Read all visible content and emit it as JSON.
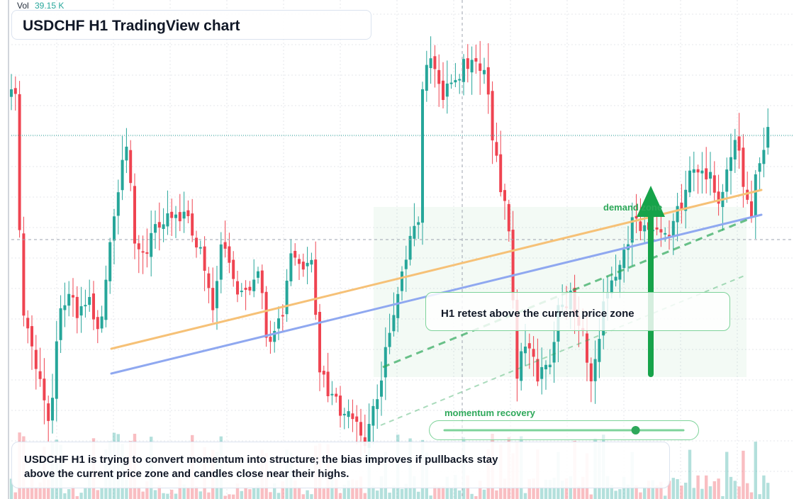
{
  "header": {
    "title": "USDCHF H1 TradingView chart"
  },
  "volume_indicator": {
    "label": "Vol",
    "value": "39.15 K"
  },
  "annotations": {
    "callout": "H1 retest above the current price zone",
    "zone_label": "demand zone",
    "momentum_label": "momentum recovery",
    "summary": "USDCHF H1 is trying to convert momentum into structure; the bias improves if pullbacks stay above the current price zone and candles close near their highs."
  },
  "colors": {
    "bull": "#26a69a",
    "bear": "#ef4451",
    "trendline_orange": "#f6c177",
    "trendline_blue": "#8fa8f0",
    "annotation_green": "#2ea85a",
    "grid": "#e5e7eb"
  },
  "chart_data": {
    "type": "candlestick",
    "symbol": "USDCHF",
    "timeframe": "H1",
    "title": "USDCHF H1 TradingView chart",
    "volume_last": "39.15 K",
    "momentum_indicator": {
      "label": "momentum recovery",
      "level": 0.8
    },
    "zone": {
      "label": "demand zone"
    },
    "candles_ohlc_index": [
      [
        0.0,
        0.3,
        0.78,
        0.78,
        0.22
      ],
      [
        0.0,
        0.3,
        0.68,
        0.94,
        0.28
      ],
      [
        0.0,
        0.58,
        0.25,
        0.67,
        0.2
      ],
      [
        0.0,
        0.43,
        0.36,
        0.51,
        0.33
      ],
      [
        0.0,
        0.18,
        0.27,
        0.27,
        0.12
      ],
      [
        0.0,
        0.29,
        0.39,
        0.4,
        0.26
      ],
      [
        0.0,
        0.32,
        0.28,
        0.35,
        0.21
      ],
      [
        0.0,
        0.06,
        0.14,
        0.14,
        0.01
      ],
      [
        0.0,
        0.15,
        0.02,
        0.25,
        0.01
      ],
      [
        0.0,
        0.09,
        0.03,
        0.1,
        0.0
      ],
      [
        0.0,
        0.41,
        0.15,
        0.48,
        0.15
      ]
    ]
  }
}
